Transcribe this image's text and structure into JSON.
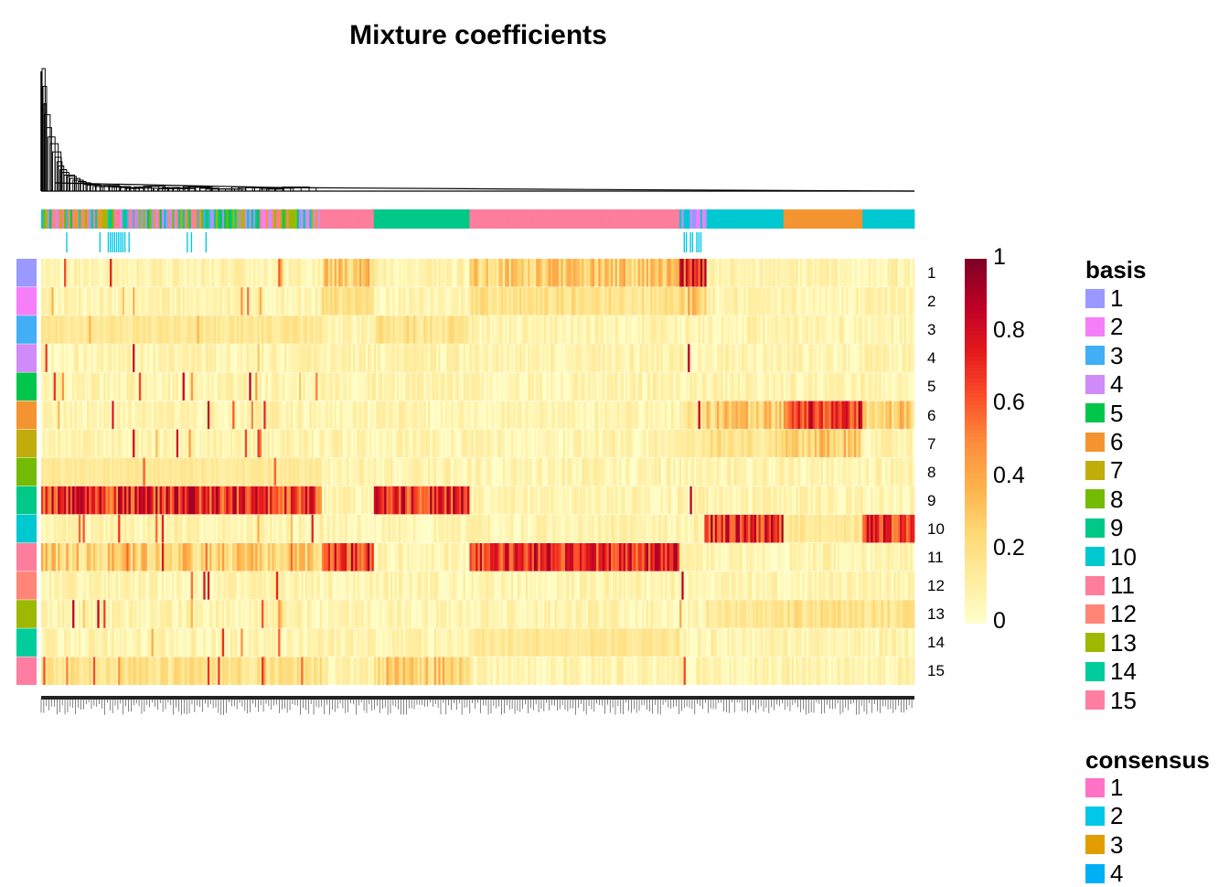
{
  "chart_data": {
    "type": "heatmap",
    "title": "Mixture coefficients",
    "rows": [
      "1",
      "2",
      "3",
      "4",
      "5",
      "6",
      "7",
      "8",
      "9",
      "10",
      "11",
      "12",
      "13",
      "14",
      "15"
    ],
    "row_annotation_colors": [
      "#9999FF",
      "#F67EF8",
      "#41AEF5",
      "#CF8CF8",
      "#02C64B",
      "#F49430",
      "#C0AC0A",
      "#74BB05",
      "#00C886",
      "#00C8D0",
      "#FD7D9D",
      "#FF8577",
      "#9CB800",
      "#00CD9B",
      "#FE7EA1"
    ],
    "column_groups": [
      {
        "start": 0.0,
        "end": 0.32,
        "basis_mix": [
          1,
          2,
          3,
          4,
          5,
          6,
          7,
          8,
          9,
          10,
          11,
          12,
          13,
          14,
          15
        ],
        "dominant_rows": [
          9,
          11,
          15,
          3,
          8
        ]
      },
      {
        "start": 0.32,
        "end": 0.38,
        "basis": 11,
        "dominant_rows": [
          11,
          1,
          2
        ]
      },
      {
        "start": 0.38,
        "end": 0.49,
        "basis": 9,
        "dominant_rows": [
          9,
          15,
          3
        ]
      },
      {
        "start": 0.49,
        "end": 0.73,
        "basis": 11,
        "dominant_rows": [
          11,
          1,
          2,
          14
        ]
      },
      {
        "start": 0.73,
        "end": 0.76,
        "basis_mix": [
          1,
          2,
          4,
          10
        ],
        "dominant_rows": [
          1,
          2,
          6,
          7
        ]
      },
      {
        "start": 0.76,
        "end": 0.85,
        "basis": 10,
        "dominant_rows": [
          10,
          6,
          7,
          13
        ]
      },
      {
        "start": 0.85,
        "end": 0.94,
        "basis": 6,
        "dominant_rows": [
          6,
          7,
          13,
          10
        ]
      },
      {
        "start": 0.94,
        "end": 1.0,
        "basis": 10,
        "dominant_rows": [
          10,
          6,
          13
        ]
      }
    ],
    "color_scale": {
      "min": 0,
      "max": 1,
      "ticks": [
        "0",
        "0.2",
        "0.4",
        "0.6",
        "0.8",
        "1"
      ],
      "colors": [
        "#FFFFCC",
        "#FFEDA0",
        "#FED976",
        "#FEB24C",
        "#FD8D3C",
        "#FC4E2A",
        "#E31A1C",
        "#BD0026",
        "#800026"
      ]
    },
    "dendrogram": "top"
  },
  "legends": {
    "basis": {
      "title": "basis",
      "items": [
        {
          "label": "1",
          "color": "#9999FF"
        },
        {
          "label": "2",
          "color": "#F67EF8"
        },
        {
          "label": "3",
          "color": "#41AEF5"
        },
        {
          "label": "4",
          "color": "#CF8CF8"
        },
        {
          "label": "5",
          "color": "#02C64B"
        },
        {
          "label": "6",
          "color": "#F49430"
        },
        {
          "label": "7",
          "color": "#C0AC0A"
        },
        {
          "label": "8",
          "color": "#74BB05"
        },
        {
          "label": "9",
          "color": "#00C886"
        },
        {
          "label": "10",
          "color": "#00C8D0"
        },
        {
          "label": "11",
          "color": "#FD7D9D"
        },
        {
          "label": "12",
          "color": "#FF8577"
        },
        {
          "label": "13",
          "color": "#9CB800"
        },
        {
          "label": "14",
          "color": "#00CD9B"
        },
        {
          "label": "15",
          "color": "#FE7EA1"
        }
      ]
    },
    "consensus": {
      "title": "consensus",
      "items": [
        {
          "label": "1",
          "color": "#FF72C6"
        },
        {
          "label": "2",
          "color": "#00C8E6"
        },
        {
          "label": "3",
          "color": "#E29E00"
        },
        {
          "label": "4",
          "color": "#00B0F5"
        }
      ]
    }
  }
}
